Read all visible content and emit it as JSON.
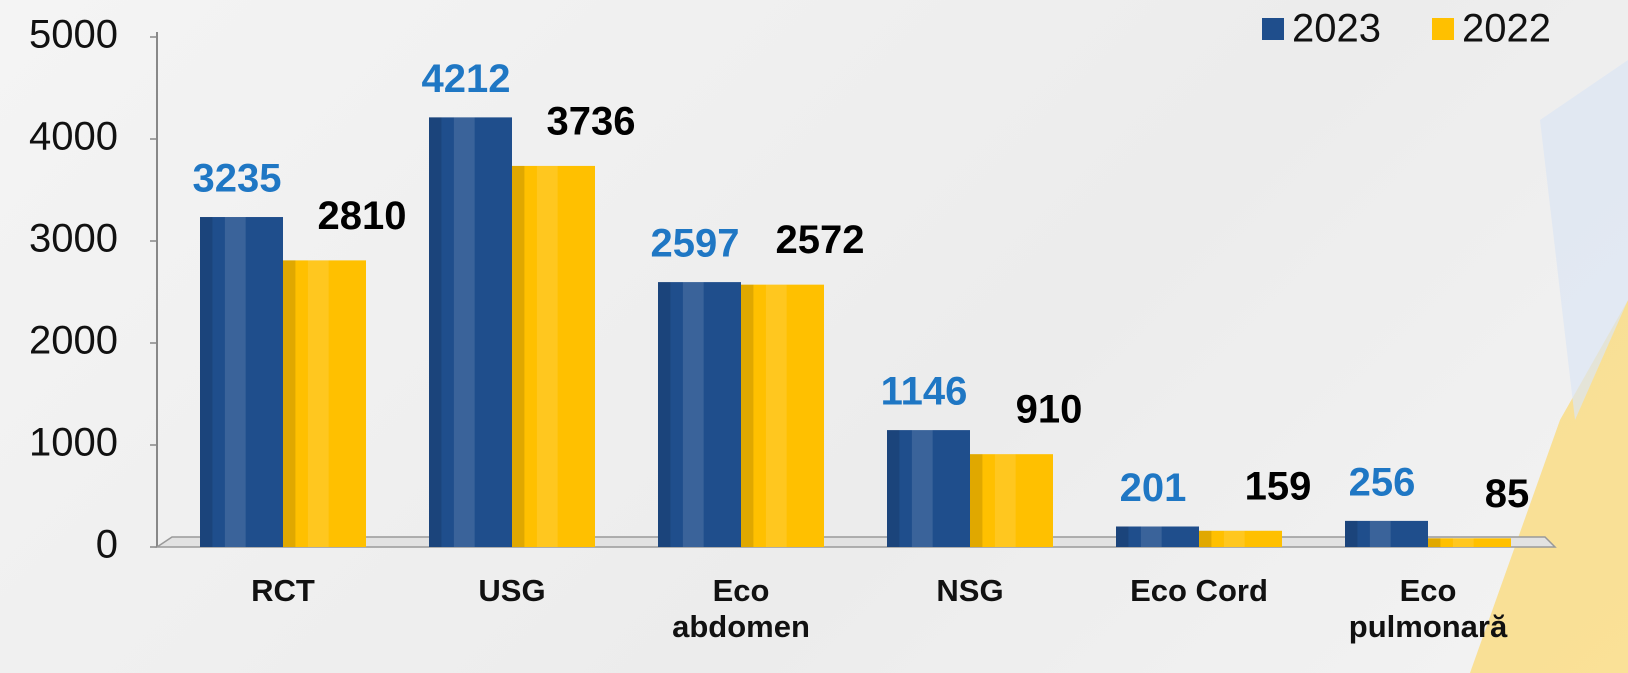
{
  "chart_data": {
    "type": "bar",
    "categories": [
      "RCT",
      "USG",
      "Eco abdomen",
      "NSG",
      "Eco Cord",
      "Eco pulmonară"
    ],
    "series": [
      {
        "name": "2023",
        "color": "#1f4e8c",
        "label_color": "#1f77c4",
        "values": [
          3235,
          4212,
          2597,
          1146,
          201,
          256
        ]
      },
      {
        "name": "2022",
        "color": "#ffc000",
        "label_color": "#000000",
        "values": [
          2810,
          3736,
          2572,
          910,
          159,
          85
        ]
      }
    ],
    "ylim": [
      0,
      5000
    ],
    "yticks": [
      0,
      1000,
      2000,
      3000,
      4000,
      5000
    ],
    "grid": false,
    "legend": "top-right"
  }
}
